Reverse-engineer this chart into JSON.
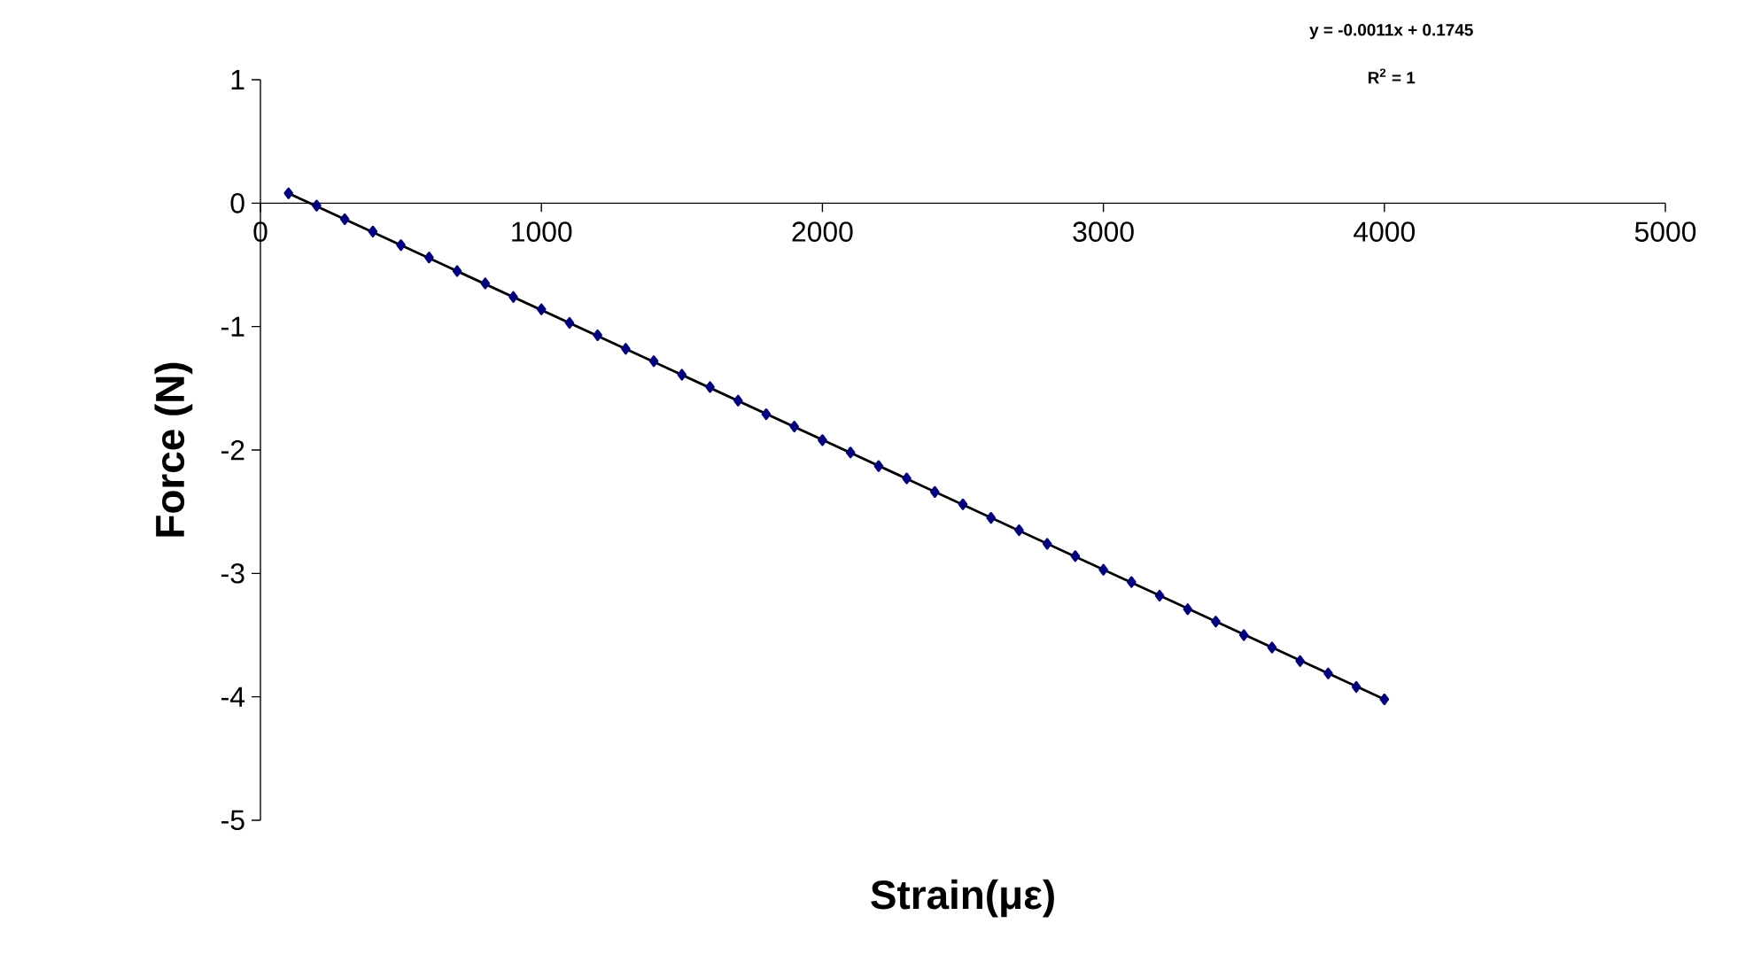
{
  "chart_data": {
    "type": "scatter",
    "xlabel": "Strain(με)",
    "ylabel": "Force (N)",
    "annotations": [
      "y = -0.0011x + 0.1745",
      "R$^{2}$ = 1"
    ],
    "x": [
      100,
      200,
      300,
      400,
      500,
      600,
      700,
      800,
      900,
      1000,
      1100,
      1200,
      1300,
      1400,
      1500,
      1600,
      1700,
      1800,
      1900,
      2000,
      2100,
      2200,
      2300,
      2400,
      2500,
      2600,
      2700,
      2800,
      2900,
      3000,
      3100,
      3200,
      3300,
      3400,
      3500,
      3600,
      3700,
      3800,
      3900,
      4000
    ],
    "series": [
      {
        "color": "#000080",
        "marker": "diamond",
        "values": [
          0.08,
          -0.02,
          -0.13,
          -0.23,
          -0.34,
          -0.44,
          -0.55,
          -0.65,
          -0.76,
          -0.86,
          -0.97,
          -1.07,
          -1.18,
          -1.28,
          -1.39,
          -1.49,
          -1.6,
          -1.71,
          -1.81,
          -1.92,
          -2.02,
          -2.13,
          -2.23,
          -2.34,
          -2.44,
          -2.55,
          -2.65,
          -2.76,
          -2.86,
          -2.97,
          -3.07,
          -3.18,
          -3.29,
          -3.39,
          -3.5,
          -3.6,
          -3.71,
          -3.81,
          -3.92,
          -4.02
        ]
      },
      {
        "type": "line",
        "color": "#000000",
        "marker": "none",
        "x": [
          100,
          4000
        ],
        "values": [
          0.08,
          -4.02
        ]
      }
    ],
    "xlim": [
      0,
      5000
    ],
    "ylim": [
      -5,
      1
    ],
    "xticks": [
      0,
      1000,
      2000,
      3000,
      4000,
      5000
    ],
    "yticks": [
      -5,
      -4,
      -3,
      -2,
      -1,
      0,
      1
    ]
  }
}
